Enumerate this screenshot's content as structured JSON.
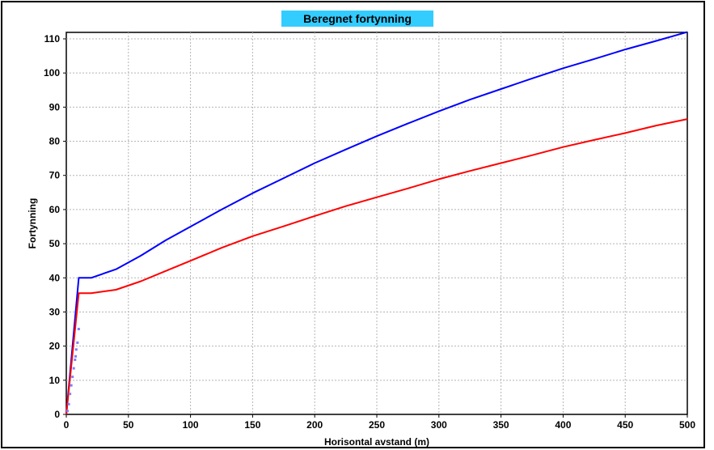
{
  "chart_data": {
    "type": "line",
    "title": "Beregnet fortynning",
    "xlabel": "Horisontal avstand (m)",
    "ylabel": "Fortynning",
    "xlim": [
      0,
      500
    ],
    "ylim": [
      0,
      112
    ],
    "xticks": [
      0,
      50,
      100,
      150,
      200,
      250,
      300,
      350,
      400,
      450,
      500
    ],
    "yticks": [
      0,
      10,
      20,
      30,
      40,
      50,
      60,
      70,
      80,
      90,
      100,
      110
    ],
    "grid": true,
    "legend": "none",
    "colors": {
      "title_bg": "#33ccff",
      "series_blue": "#0000ff",
      "series_red": "#ff0000",
      "points": "#7f7fff",
      "grid": "#b4b4b4"
    },
    "series": [
      {
        "color": "#0000ff",
        "points": [
          [
            0,
            0
          ],
          [
            10,
            40
          ],
          [
            20,
            40
          ],
          [
            40,
            42.5
          ],
          [
            60,
            46.5
          ],
          [
            80,
            51
          ],
          [
            100,
            55
          ],
          [
            125,
            60
          ],
          [
            150,
            64.8
          ],
          [
            175,
            69.2
          ],
          [
            200,
            73.6
          ],
          [
            225,
            77.6
          ],
          [
            250,
            81.5
          ],
          [
            275,
            85.2
          ],
          [
            300,
            88.8
          ],
          [
            325,
            92.2
          ],
          [
            350,
            95.3
          ],
          [
            375,
            98.4
          ],
          [
            400,
            101.4
          ],
          [
            425,
            104.1
          ],
          [
            450,
            106.9
          ],
          [
            475,
            109.4
          ],
          [
            500,
            112
          ]
        ]
      },
      {
        "color": "#ff0000",
        "points": [
          [
            0,
            0
          ],
          [
            10,
            35.5
          ],
          [
            20,
            35.5
          ],
          [
            40,
            36.5
          ],
          [
            60,
            39
          ],
          [
            80,
            42
          ],
          [
            100,
            45
          ],
          [
            125,
            48.8
          ],
          [
            150,
            52.2
          ],
          [
            175,
            55.1
          ],
          [
            200,
            58.1
          ],
          [
            225,
            61
          ],
          [
            250,
            63.6
          ],
          [
            275,
            66.2
          ],
          [
            300,
            68.9
          ],
          [
            325,
            71.3
          ],
          [
            350,
            73.6
          ],
          [
            375,
            75.9
          ],
          [
            400,
            78.3
          ],
          [
            425,
            80.4
          ],
          [
            450,
            82.4
          ],
          [
            475,
            84.6
          ],
          [
            500,
            86.5
          ]
        ]
      }
    ],
    "scatter_points": [
      [
        1,
        1
      ],
      [
        2,
        3
      ],
      [
        3,
        6
      ],
      [
        4,
        8.5
      ],
      [
        5,
        11
      ],
      [
        6,
        13.5
      ],
      [
        7,
        16
      ],
      [
        7.5,
        17
      ],
      [
        8,
        19
      ],
      [
        9,
        21
      ],
      [
        10,
        25
      ]
    ]
  }
}
